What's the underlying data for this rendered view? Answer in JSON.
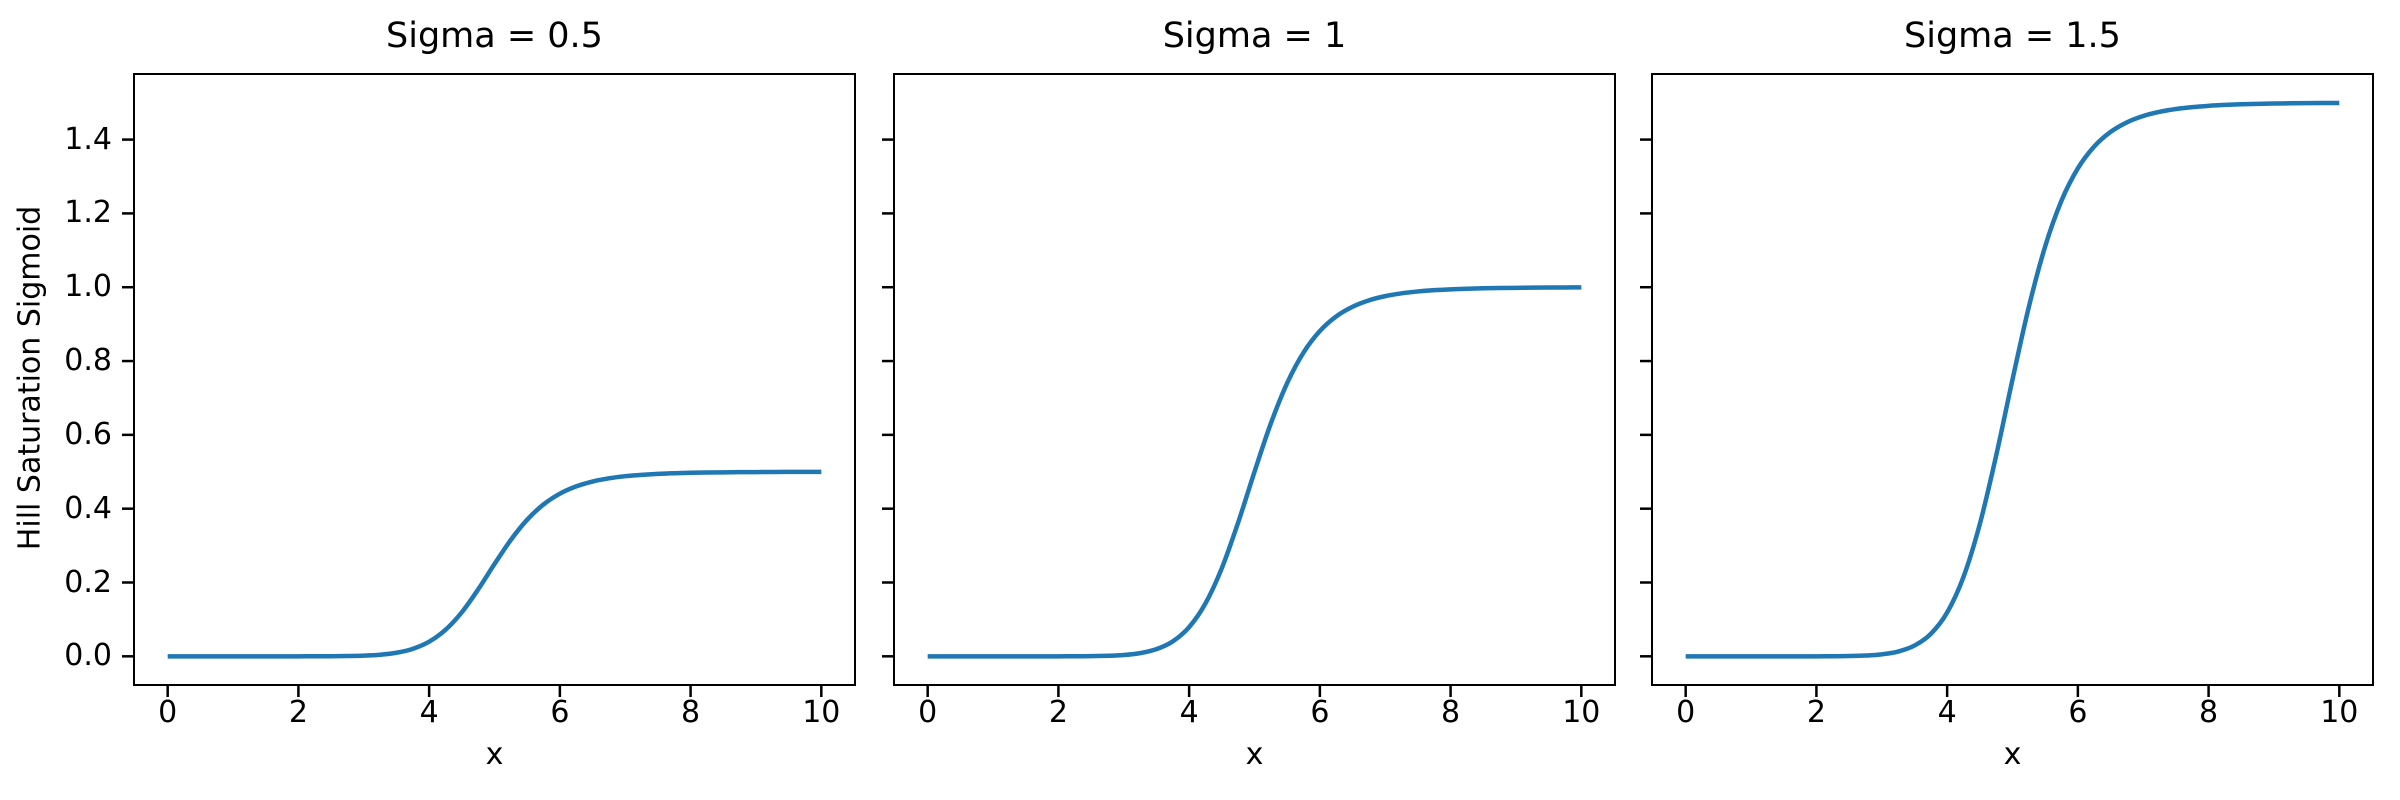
{
  "chart_data": {
    "type": "line",
    "layout": {
      "rows": 1,
      "cols": 3,
      "shared_y": true
    },
    "subplot_titles": [
      "Sigma = 0.5",
      "Sigma = 1",
      "Sigma = 1.5"
    ],
    "xlabel": "x",
    "ylabel": "Hill Saturation Sigmoid",
    "x_ticks": [
      0,
      2,
      4,
      6,
      8,
      10
    ],
    "x_tick_labels": [
      "0",
      "2",
      "4",
      "6",
      "8",
      "10"
    ],
    "y_ticks": [
      0.0,
      0.2,
      0.4,
      0.6,
      0.8,
      1.0,
      1.2,
      1.4
    ],
    "y_tick_labels": [
      "0.0",
      "0.2",
      "0.4",
      "0.6",
      "0.8",
      "1.0",
      "1.2",
      "1.4"
    ],
    "xlim": [
      -0.5,
      10.5
    ],
    "ylim": [
      -0.075,
      1.575
    ],
    "grid": false,
    "legend": false,
    "background": "#ffffff",
    "line_color": "#1f77b4",
    "x": [
      0,
      0.25,
      0.5,
      0.75,
      1,
      1.25,
      1.5,
      1.75,
      2,
      2.25,
      2.5,
      2.75,
      3,
      3.25,
      3.5,
      3.75,
      4,
      4.25,
      4.5,
      4.75,
      5,
      5.25,
      5.5,
      5.75,
      6,
      6.25,
      6.5,
      6.75,
      7,
      7.25,
      7.5,
      7.75,
      8,
      8.25,
      8.5,
      8.75,
      9,
      9.25,
      9.5,
      9.75,
      10
    ],
    "series": [
      {
        "name": "Sigma = 0.5",
        "sigma": 0.5,
        "saturation": 0.5,
        "y": [
          0,
          0,
          0,
          0,
          0,
          0,
          0,
          0,
          0,
          0.0001,
          0.0002,
          0.0007,
          0.0018,
          0.0043,
          0.0097,
          0.0203,
          0.0396,
          0.0717,
          0.1194,
          0.1813,
          0.25,
          0.3155,
          0.3702,
          0.4115,
          0.4407,
          0.4604,
          0.4736,
          0.4822,
          0.488,
          0.4917,
          0.4943,
          0.496,
          0.4972,
          0.498,
          0.4985,
          0.4989,
          0.4992,
          0.4994,
          0.4996,
          0.4997,
          0.4998
        ]
      },
      {
        "name": "Sigma = 1",
        "sigma": 1,
        "saturation": 1.0,
        "y": [
          0,
          0,
          0,
          0,
          0,
          0,
          0,
          0,
          0,
          0.0002,
          0.0005,
          0.0014,
          0.0036,
          0.0087,
          0.0194,
          0.0405,
          0.0791,
          0.1434,
          0.2388,
          0.3626,
          0.5,
          0.631,
          0.7405,
          0.8231,
          0.8814,
          0.9209,
          0.9471,
          0.9645,
          0.9759,
          0.9835,
          0.9886,
          0.992,
          0.9943,
          0.996,
          0.9971,
          0.9979,
          0.9984,
          0.9989,
          0.9991,
          0.9994,
          0.9995
        ]
      },
      {
        "name": "Sigma = 1.5",
        "sigma": 1.5,
        "saturation": 1.5,
        "y": [
          0,
          0,
          0,
          0,
          0,
          0,
          0,
          0,
          0,
          0.0002,
          0.0007,
          0.0021,
          0.0054,
          0.013,
          0.0291,
          0.0608,
          0.1187,
          0.215,
          0.3583,
          0.5438,
          0.75,
          0.9466,
          1.1107,
          1.2346,
          1.3221,
          1.3813,
          1.4207,
          1.4467,
          1.4639,
          1.4752,
          1.4829,
          1.488,
          1.4915,
          1.4939,
          1.4956,
          1.4968,
          1.4977,
          1.4983,
          1.4987,
          1.499,
          1.4993
        ]
      }
    ]
  }
}
